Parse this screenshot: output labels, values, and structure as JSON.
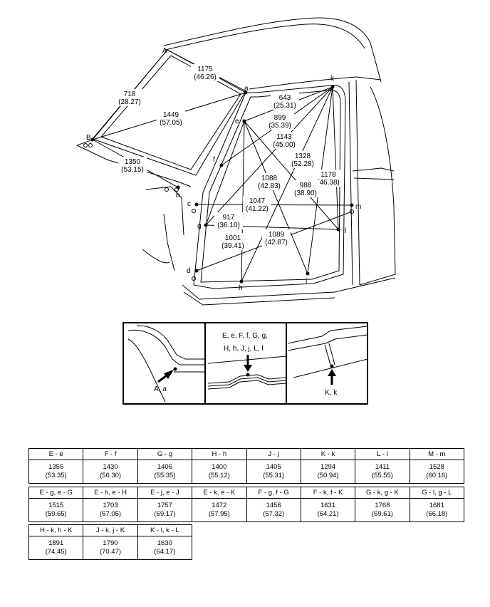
{
  "diagram": {
    "points": [
      "A",
      "a",
      "B",
      "b",
      "c",
      "d",
      "e",
      "f",
      "g",
      "h",
      "j",
      "k",
      "l",
      "m"
    ],
    "dimensions": [
      {
        "mm": "1175",
        "in": "(46.26)"
      },
      {
        "mm": "718",
        "in": "(28.27)"
      },
      {
        "mm": "1449",
        "in": "(57.05)"
      },
      {
        "mm": "1350",
        "in": "(53.15)"
      },
      {
        "mm": "643",
        "in": "(25.31)"
      },
      {
        "mm": "899",
        "in": "(35.39)"
      },
      {
        "mm": "1143",
        "in": "(45.00)"
      },
      {
        "mm": "1328",
        "in": "(52.28)"
      },
      {
        "mm": "1178",
        "in": "(46.38)"
      },
      {
        "mm": "1088",
        "in": "(42.83)"
      },
      {
        "mm": "988",
        "in": "(38.90)"
      },
      {
        "mm": "1047",
        "in": "(41.22)"
      },
      {
        "mm": "917",
        "in": "(36.10)"
      },
      {
        "mm": "1001",
        "in": "(39.41)"
      },
      {
        "mm": "1089",
        "in": "(42.87)"
      }
    ]
  },
  "details": {
    "left_label": "A, a",
    "mid_line1": "E, e, F, f, G, g,",
    "mid_line2": "H, h, J, j, L, l",
    "right_label": "K, k"
  },
  "tables": [
    {
      "headers": [
        "E - e",
        "F - f",
        "G - g",
        "H - h",
        "J - j",
        "K - k",
        "L - l",
        "M - m"
      ],
      "values": [
        {
          "mm": "1355",
          "in": "(53.35)"
        },
        {
          "mm": "1430",
          "in": "(56.30)"
        },
        {
          "mm": "1406",
          "in": "(55.35)"
        },
        {
          "mm": "1400",
          "in": "(55.12)"
        },
        {
          "mm": "1405",
          "in": "(55.31)"
        },
        {
          "mm": "1294",
          "in": "(50.94)"
        },
        {
          "mm": "1411",
          "in": "(55.55)"
        },
        {
          "mm": "1528",
          "in": "(60.16)"
        }
      ]
    },
    {
      "headers": [
        "E - g, e - G",
        "E - h, e - H",
        "E - j, e - J",
        "E - k, e - K",
        "F - g, f - G",
        "F - k, f - K",
        "G - k, g - K",
        "G - l, g - L"
      ],
      "values": [
        {
          "mm": "1515",
          "in": "(59.65)"
        },
        {
          "mm": "1703",
          "in": "(67.05)"
        },
        {
          "mm": "1757",
          "in": "(69.17)"
        },
        {
          "mm": "1472",
          "in": "(57.95)"
        },
        {
          "mm": "1456",
          "in": "(57.32)"
        },
        {
          "mm": "1631",
          "in": "(64.21)"
        },
        {
          "mm": "1768",
          "in": "(69.61)"
        },
        {
          "mm": "1681",
          "in": "(66.18)"
        }
      ]
    },
    {
      "headers": [
        "H - k, h - K",
        "J - k, j - K",
        "K - l, k - L"
      ],
      "values": [
        {
          "mm": "1891",
          "in": "(74.45)"
        },
        {
          "mm": "1790",
          "in": "(70.47)"
        },
        {
          "mm": "1630",
          "in": "(64.17)"
        }
      ]
    }
  ]
}
